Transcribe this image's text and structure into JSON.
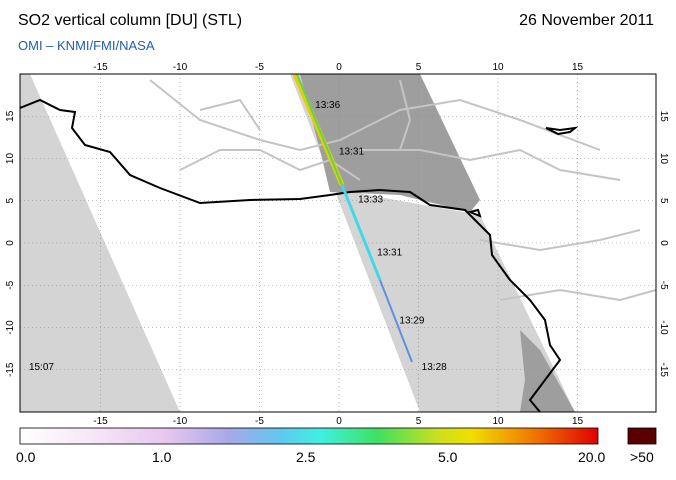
{
  "header": {
    "title": "SO2 vertical column [DU] (STL)",
    "date": "26 November 2011",
    "credit": "OMI  –  KNMI/FMI/NASA"
  },
  "map": {
    "lon_range": [
      -20,
      20
    ],
    "lat_range": [
      -20,
      20
    ],
    "lon_ticks": [
      -15,
      -10,
      -5,
      0,
      5,
      10,
      15
    ],
    "lat_ticks": [
      15,
      10,
      5,
      0,
      -5,
      -10,
      -15
    ],
    "grid": "dotted",
    "colors": {
      "swath": "#d4d4d4",
      "night": "#9e9e9e",
      "coast": "#000000",
      "borders": "#c8c8c8"
    },
    "orbit_times": [
      {
        "label": "13:36",
        "lon": -1.5,
        "lat": 16.0
      },
      {
        "label": "13:31",
        "lon": 0.0,
        "lat": 10.5
      },
      {
        "label": "13:33",
        "lon": 1.2,
        "lat": 4.8
      },
      {
        "label": "13:31",
        "lon": 2.4,
        "lat": -1.5
      },
      {
        "label": "13:29",
        "lon": 3.8,
        "lat": -9.5
      },
      {
        "label": "13:28",
        "lon": 5.2,
        "lat": -15.0
      },
      {
        "label": "15:07",
        "lon": -19.5,
        "lat": -15.0
      }
    ]
  },
  "legend": {
    "labels": [
      {
        "text": "0.0",
        "pos": "left"
      },
      {
        "text": "1.0",
        "pos": "a"
      },
      {
        "text": "2.5",
        "pos": "b"
      },
      {
        "text": "5.0",
        "pos": "c"
      },
      {
        "text": "20.0",
        "pos": "d"
      },
      {
        "text": ">50",
        "pos": "e"
      }
    ],
    "overflow_color": "#5a0000"
  }
}
